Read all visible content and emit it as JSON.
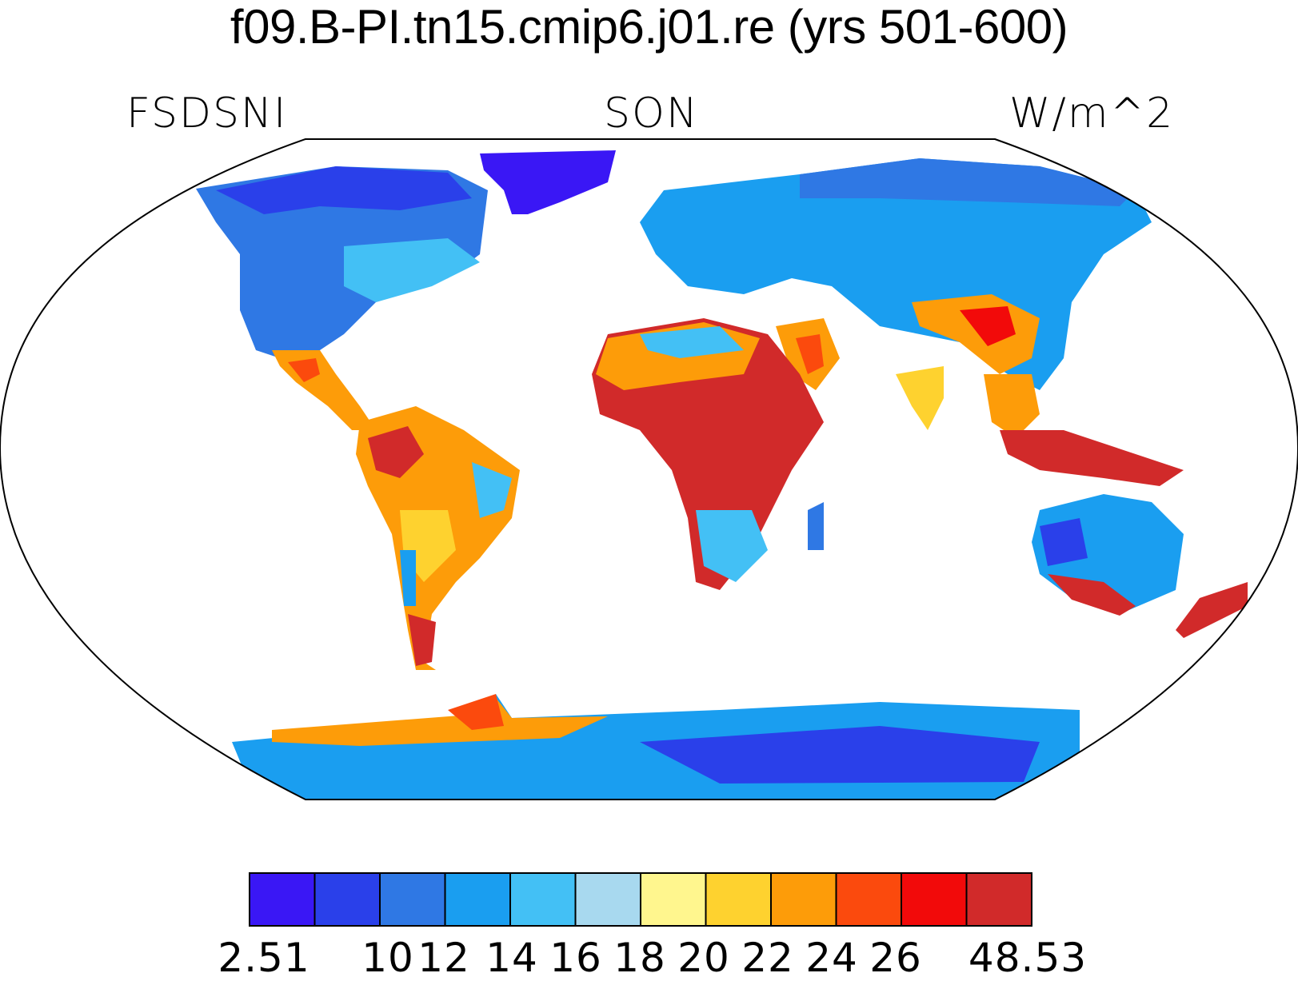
{
  "title": "f09.B-PI.tn15.cmip6.j01.re (yrs 501-600)",
  "subtitles": {
    "left": "FSDSNI",
    "center": "SON",
    "right": "W/m^2"
  },
  "colorbar": {
    "colors": [
      "#3a17f5",
      "#2a40ea",
      "#2f78e4",
      "#1a9ef0",
      "#43c0f5",
      "#a8d9ef",
      "#fff68e",
      "#fed22f",
      "#fd9c09",
      "#fb4a0d",
      "#f20a0a",
      "#d12a2a"
    ],
    "labels": [
      "2.51",
      "10",
      "12",
      "14",
      "16",
      "18",
      "20",
      "22",
      "24",
      "26",
      "48.53"
    ]
  },
  "map_layers": {
    "land_color_field": "FSDSNI",
    "colors": {
      "frame": "#000000",
      "ocean": "#ffffff",
      "coast": "#000000"
    }
  }
}
